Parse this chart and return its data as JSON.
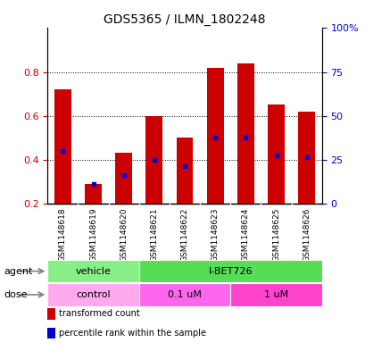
{
  "title": "GDS5365 / ILMN_1802248",
  "samples": [
    "GSM1148618",
    "GSM1148619",
    "GSM1148620",
    "GSM1148621",
    "GSM1148622",
    "GSM1148623",
    "GSM1148624",
    "GSM1148625",
    "GSM1148626"
  ],
  "bar_bottoms": [
    0.2,
    0.2,
    0.2,
    0.2,
    0.2,
    0.2,
    0.2,
    0.2,
    0.2
  ],
  "bar_tops": [
    0.72,
    0.29,
    0.43,
    0.6,
    0.5,
    0.82,
    0.84,
    0.65,
    0.62
  ],
  "percentile_values": [
    0.44,
    0.29,
    0.33,
    0.4,
    0.37,
    0.5,
    0.5,
    0.42,
    0.41
  ],
  "bar_color": "#CC0000",
  "percentile_color": "#0000CC",
  "ylim_left": [
    0.2,
    1.0
  ],
  "ylim_right": [
    0,
    100
  ],
  "yticks_left": [
    0.2,
    0.4,
    0.6,
    0.8
  ],
  "ytick_labels_left": [
    "0.2",
    "0.4",
    "0.6",
    "0.8"
  ],
  "yticks_right": [
    0,
    25,
    50,
    75,
    100
  ],
  "ytick_labels_right": [
    "0",
    "25",
    "50",
    "75",
    "100%"
  ],
  "agent_groups": [
    {
      "label": "vehicle",
      "start": 0,
      "end": 3,
      "color": "#88EE88"
    },
    {
      "label": "I-BET726",
      "start": 3,
      "end": 9,
      "color": "#55DD55"
    }
  ],
  "dose_groups": [
    {
      "label": "control",
      "start": 0,
      "end": 3,
      "color": "#FFAAEE"
    },
    {
      "label": "0.1 uM",
      "start": 3,
      "end": 6,
      "color": "#FF66EE"
    },
    {
      "label": "1 uM",
      "start": 6,
      "end": 9,
      "color": "#FF44CC"
    }
  ],
  "legend_items": [
    {
      "label": "transformed count",
      "color": "#CC0000"
    },
    {
      "label": "percentile rank within the sample",
      "color": "#0000CC"
    }
  ],
  "agent_label": "agent",
  "dose_label": "dose",
  "bar_width": 0.55,
  "grid_color": "#000000",
  "background_color": "#FFFFFF",
  "plot_bg_color": "#FFFFFF",
  "tick_area_bg": "#CCCCCC",
  "tick_label_color_left": "#CC0000",
  "tick_label_color_right": "#0000CC"
}
